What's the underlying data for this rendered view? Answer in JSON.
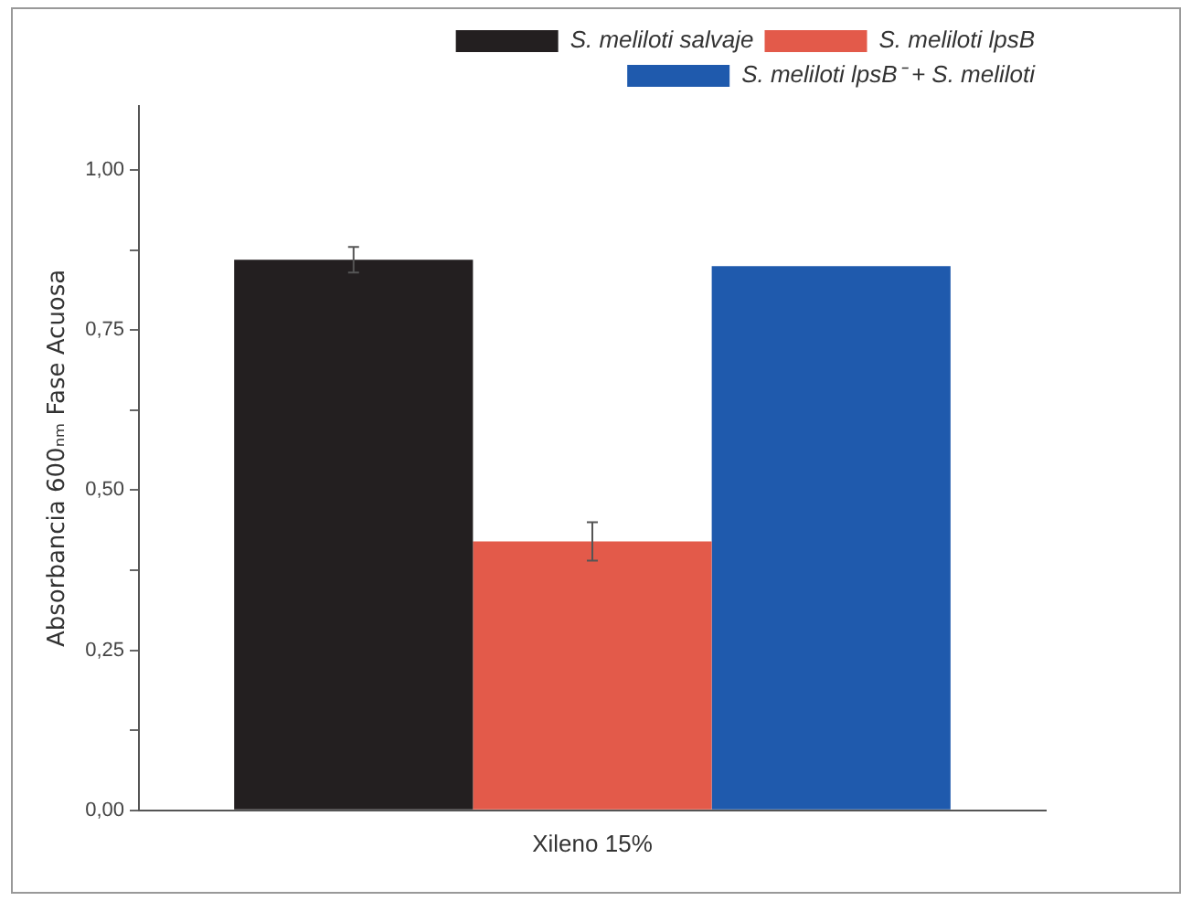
{
  "chart_data": {
    "type": "bar",
    "categories": [
      "Xileno 15%"
    ],
    "ylabel": "Absorbancia 600ₙₘ Fase Acuosa",
    "series": [
      {
        "name": "S. meliloti salvaje",
        "color": "#231f20",
        "values": [
          0.86
        ],
        "errors": [
          0.02
        ]
      },
      {
        "name": "S. meliloti lpsB",
        "color": "#e35a4a",
        "values": [
          0.42
        ],
        "errors": [
          0.03
        ]
      },
      {
        "name": "S. meliloti lpsB⁻ + S. meliloti",
        "color": "#1f5aad",
        "values": [
          0.85
        ]
      }
    ],
    "ylim": [
      0,
      1.1
    ],
    "yticks": [
      {
        "value": 0,
        "label": "0,00"
      },
      {
        "value": 0.125,
        "label": null
      },
      {
        "value": 0.25,
        "label": "0,25"
      },
      {
        "value": 0.375,
        "label": null
      },
      {
        "value": 0.5,
        "label": "0,50"
      },
      {
        "value": 0.625,
        "label": null
      },
      {
        "value": 0.75,
        "label": "0,75"
      },
      {
        "value": 0.875,
        "label": null
      },
      {
        "value": 1,
        "label": "1,00"
      }
    ],
    "grid": false,
    "legend": "top right"
  }
}
